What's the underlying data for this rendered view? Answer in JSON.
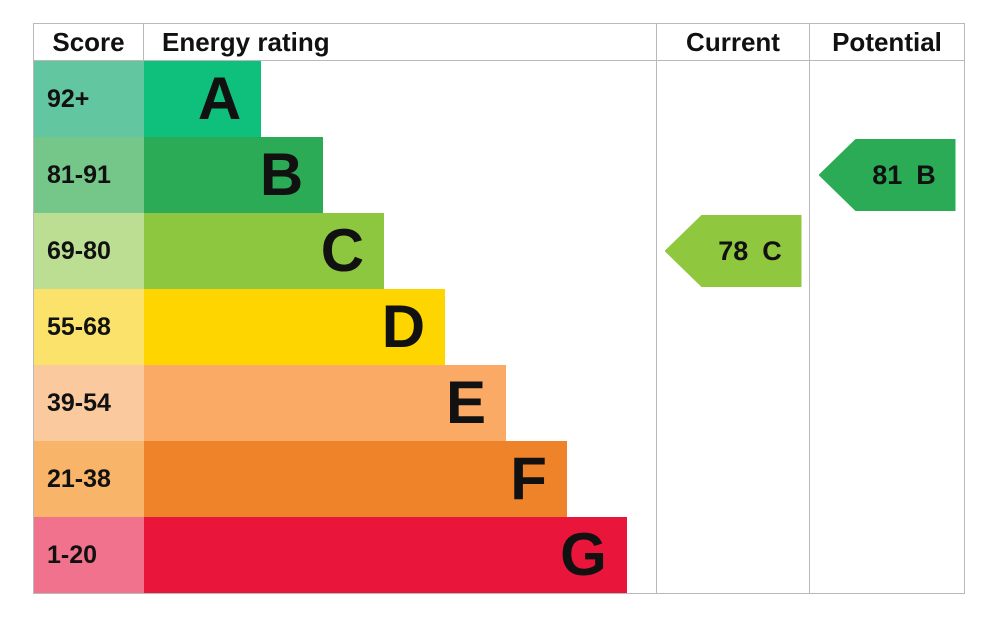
{
  "header": {
    "score": "Score",
    "rating": "Energy rating",
    "current": "Current",
    "potential": "Potential"
  },
  "colors": {
    "border": "#b9b9b9",
    "text": "#111111"
  },
  "chart_data": {
    "type": "bar",
    "legend_position": "none",
    "grid": false,
    "bands": [
      {
        "letter": "A",
        "score_range": "92+",
        "bar_width_pct": 22.9,
        "bar_color": "#0ec07c",
        "score_bg": "#62c7a0"
      },
      {
        "letter": "B",
        "score_range": "81-91",
        "bar_width_pct": 35.0,
        "bar_color": "#2bab55",
        "score_bg": "#74c689"
      },
      {
        "letter": "C",
        "score_range": "69-80",
        "bar_width_pct": 46.9,
        "bar_color": "#8dc63f",
        "score_bg": "#bcde93"
      },
      {
        "letter": "D",
        "score_range": "55-68",
        "bar_width_pct": 58.8,
        "bar_color": "#ffd500",
        "score_bg": "#fbe36b"
      },
      {
        "letter": "E",
        "score_range": "39-54",
        "bar_width_pct": 70.7,
        "bar_color": "#fbaa65",
        "score_bg": "#fbc99e"
      },
      {
        "letter": "F",
        "score_range": "21-38",
        "bar_width_pct": 82.6,
        "bar_color": "#ee8329",
        "score_bg": "#f8b468"
      },
      {
        "letter": "G",
        "score_range": "1-20",
        "bar_width_pct": 94.3,
        "bar_color": "#e9153b",
        "score_bg": "#f0728d"
      }
    ],
    "current": {
      "score": "78",
      "rating": "C",
      "band_letter": "C",
      "color": "#8fc73e"
    },
    "potential": {
      "score": "81",
      "rating": "B",
      "band_letter": "B",
      "color": "#2bab55"
    }
  }
}
